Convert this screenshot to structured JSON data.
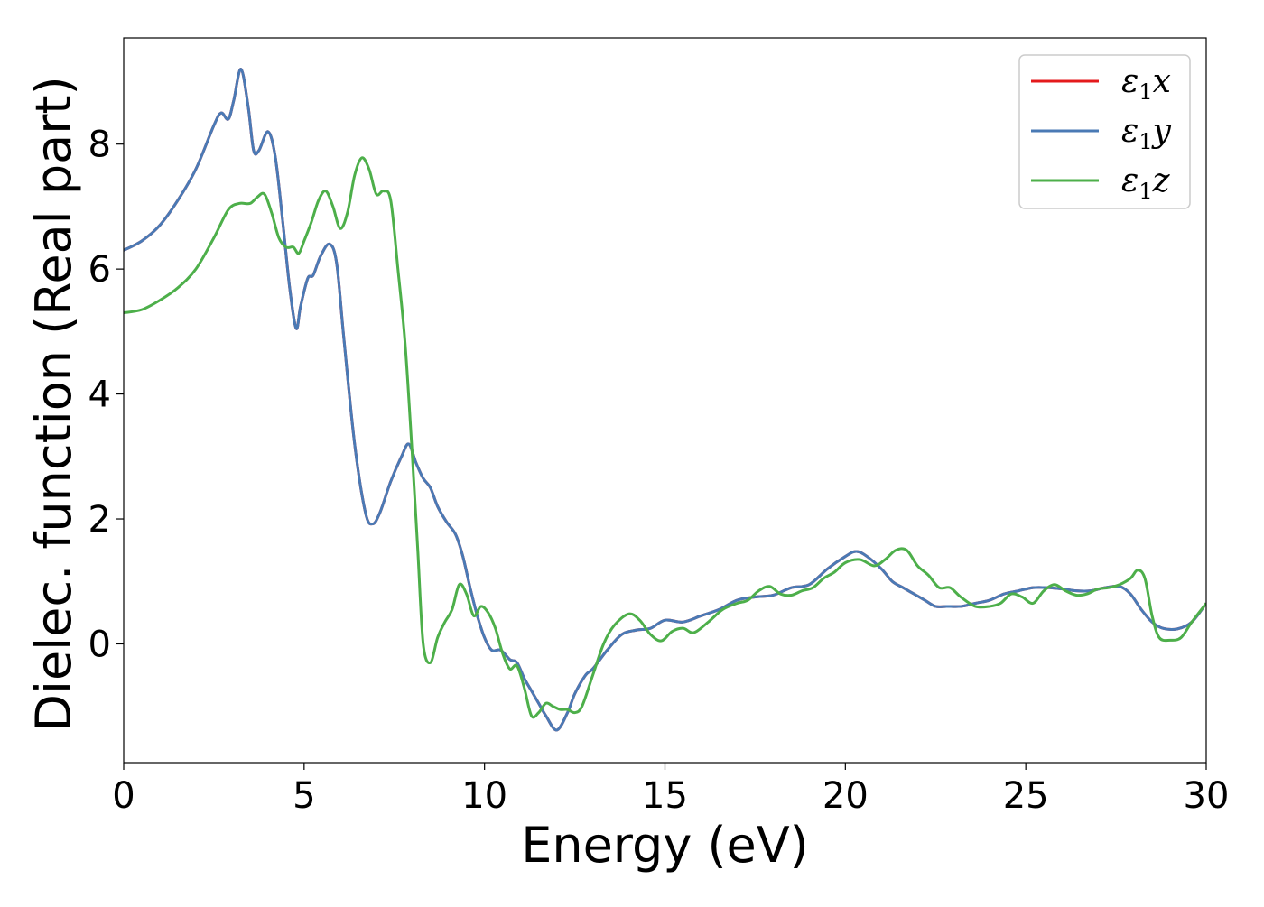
{
  "chart_data": {
    "type": "line",
    "title": "",
    "xlabel": "Energy (eV)",
    "ylabel": "Dielec. function (Real part)",
    "xlim": [
      0,
      30
    ],
    "ylim": [
      -1.9,
      9.7
    ],
    "xticks": [
      0,
      5,
      10,
      15,
      20,
      25,
      30
    ],
    "yticks": [
      0,
      2,
      4,
      6,
      8
    ],
    "grid": false,
    "legend_position": "top-right",
    "series": [
      {
        "name": "ε1x",
        "legend_base": "ε",
        "legend_sub": "1",
        "legend_tail": "x",
        "color": "#e41a1c",
        "x": [
          0,
          0.5,
          1,
          1.5,
          2,
          2.5,
          2.7,
          2.9,
          3.05,
          3.25,
          3.45,
          3.6,
          3.75,
          4.0,
          4.2,
          4.4,
          4.6,
          4.78,
          4.9,
          5.1,
          5.25,
          5.45,
          5.7,
          5.9,
          6.1,
          6.4,
          6.7,
          6.9,
          7.1,
          7.4,
          7.7,
          7.9,
          8.1,
          8.3,
          8.5,
          8.7,
          8.95,
          9.2,
          9.4,
          9.6,
          9.8,
          10.0,
          10.2,
          10.45,
          10.7,
          10.9,
          11.1,
          11.3,
          11.5,
          11.7,
          12.0,
          12.3,
          12.5,
          12.8,
          13.0,
          13.4,
          13.8,
          14.2,
          14.6,
          15.0,
          15.5,
          16.0,
          16.5,
          17.0,
          17.5,
          18.0,
          18.5,
          19.0,
          19.5,
          20.0,
          20.3,
          20.6,
          21.0,
          21.3,
          21.6,
          21.9,
          22.2,
          22.5,
          22.8,
          23.2,
          23.6,
          24.0,
          24.4,
          24.8,
          25.2,
          25.6,
          26.0,
          26.4,
          26.8,
          27.2,
          27.6,
          27.9,
          28.2,
          28.5,
          28.8,
          29.2,
          29.6,
          30.0
        ],
        "y": [
          6.3,
          6.45,
          6.7,
          7.1,
          7.6,
          8.3,
          8.5,
          8.4,
          8.7,
          9.2,
          8.6,
          7.9,
          7.9,
          8.2,
          7.8,
          6.8,
          5.7,
          5.05,
          5.4,
          5.85,
          5.9,
          6.2,
          6.4,
          6.1,
          4.9,
          3.2,
          2.1,
          1.92,
          2.1,
          2.6,
          3.0,
          3.2,
          2.9,
          2.65,
          2.5,
          2.2,
          1.95,
          1.75,
          1.4,
          0.9,
          0.45,
          0.1,
          -0.1,
          -0.1,
          -0.25,
          -0.3,
          -0.55,
          -0.75,
          -0.95,
          -1.15,
          -1.38,
          -1.1,
          -0.8,
          -0.5,
          -0.4,
          -0.1,
          0.15,
          0.22,
          0.25,
          0.38,
          0.35,
          0.45,
          0.55,
          0.7,
          0.75,
          0.78,
          0.9,
          0.95,
          1.2,
          1.4,
          1.48,
          1.4,
          1.2,
          1.0,
          0.9,
          0.8,
          0.7,
          0.6,
          0.6,
          0.6,
          0.65,
          0.7,
          0.8,
          0.85,
          0.9,
          0.9,
          0.88,
          0.85,
          0.85,
          0.9,
          0.92,
          0.8,
          0.55,
          0.35,
          0.25,
          0.24,
          0.35,
          0.65
        ]
      },
      {
        "name": "ε1y",
        "legend_base": "ε",
        "legend_sub": "1",
        "legend_tail": "y",
        "color": "#4a7ab5",
        "x": [
          0,
          0.5,
          1,
          1.5,
          2,
          2.5,
          2.7,
          2.9,
          3.05,
          3.25,
          3.45,
          3.6,
          3.75,
          4.0,
          4.2,
          4.4,
          4.6,
          4.78,
          4.9,
          5.1,
          5.25,
          5.45,
          5.7,
          5.9,
          6.1,
          6.4,
          6.7,
          6.9,
          7.1,
          7.4,
          7.7,
          7.9,
          8.1,
          8.3,
          8.5,
          8.7,
          8.95,
          9.2,
          9.4,
          9.6,
          9.8,
          10.0,
          10.2,
          10.45,
          10.7,
          10.9,
          11.1,
          11.3,
          11.5,
          11.7,
          12.0,
          12.3,
          12.5,
          12.8,
          13.0,
          13.4,
          13.8,
          14.2,
          14.6,
          15.0,
          15.5,
          16.0,
          16.5,
          17.0,
          17.5,
          18.0,
          18.5,
          19.0,
          19.5,
          20.0,
          20.3,
          20.6,
          21.0,
          21.3,
          21.6,
          21.9,
          22.2,
          22.5,
          22.8,
          23.2,
          23.6,
          24.0,
          24.4,
          24.8,
          25.2,
          25.6,
          26.0,
          26.4,
          26.8,
          27.2,
          27.6,
          27.9,
          28.2,
          28.5,
          28.8,
          29.2,
          29.6,
          30.0
        ],
        "y": [
          6.3,
          6.45,
          6.7,
          7.1,
          7.6,
          8.3,
          8.5,
          8.4,
          8.7,
          9.2,
          8.6,
          7.9,
          7.9,
          8.2,
          7.8,
          6.8,
          5.7,
          5.05,
          5.4,
          5.85,
          5.9,
          6.2,
          6.4,
          6.1,
          4.9,
          3.2,
          2.1,
          1.92,
          2.1,
          2.6,
          3.0,
          3.2,
          2.9,
          2.65,
          2.5,
          2.2,
          1.95,
          1.75,
          1.4,
          0.9,
          0.45,
          0.1,
          -0.1,
          -0.1,
          -0.25,
          -0.3,
          -0.55,
          -0.75,
          -0.95,
          -1.15,
          -1.38,
          -1.1,
          -0.8,
          -0.5,
          -0.4,
          -0.1,
          0.15,
          0.22,
          0.25,
          0.38,
          0.35,
          0.45,
          0.55,
          0.7,
          0.75,
          0.78,
          0.9,
          0.95,
          1.2,
          1.4,
          1.48,
          1.4,
          1.2,
          1.0,
          0.9,
          0.8,
          0.7,
          0.6,
          0.6,
          0.6,
          0.65,
          0.7,
          0.8,
          0.85,
          0.9,
          0.9,
          0.88,
          0.85,
          0.85,
          0.9,
          0.92,
          0.8,
          0.55,
          0.35,
          0.25,
          0.24,
          0.35,
          0.65
        ]
      },
      {
        "name": "ε1z",
        "legend_base": "ε",
        "legend_sub": "1",
        "legend_tail": "z",
        "color": "#4daf4a",
        "x": [
          0,
          0.5,
          1,
          1.5,
          2,
          2.5,
          2.9,
          3.2,
          3.5,
          3.7,
          3.9,
          4.1,
          4.3,
          4.5,
          4.7,
          4.85,
          5.0,
          5.2,
          5.4,
          5.6,
          5.8,
          6.0,
          6.2,
          6.4,
          6.6,
          6.8,
          7.0,
          7.2,
          7.4,
          7.6,
          7.8,
          8.0,
          8.15,
          8.3,
          8.5,
          8.7,
          8.9,
          9.1,
          9.3,
          9.5,
          9.7,
          9.9,
          10.1,
          10.3,
          10.5,
          10.7,
          10.9,
          11.1,
          11.3,
          11.5,
          11.7,
          11.9,
          12.1,
          12.3,
          12.5,
          12.7,
          13.0,
          13.3,
          13.6,
          14.0,
          14.3,
          14.6,
          14.9,
          15.2,
          15.5,
          15.8,
          16.2,
          16.6,
          17.0,
          17.3,
          17.6,
          17.9,
          18.2,
          18.5,
          18.8,
          19.1,
          19.4,
          19.7,
          20.0,
          20.4,
          20.8,
          21.1,
          21.4,
          21.7,
          22.0,
          22.3,
          22.6,
          22.9,
          23.2,
          23.6,
          24.0,
          24.3,
          24.6,
          24.9,
          25.2,
          25.5,
          25.8,
          26.1,
          26.4,
          26.7,
          27.0,
          27.3,
          27.6,
          27.9,
          28.1,
          28.3,
          28.5,
          28.7,
          29.0,
          29.3,
          29.6,
          30.0
        ],
        "y": [
          5.3,
          5.35,
          5.5,
          5.7,
          6.0,
          6.5,
          6.95,
          7.05,
          7.05,
          7.15,
          7.2,
          6.9,
          6.5,
          6.35,
          6.35,
          6.25,
          6.45,
          6.75,
          7.1,
          7.25,
          7.0,
          6.65,
          6.9,
          7.5,
          7.78,
          7.6,
          7.2,
          7.25,
          7.1,
          6.0,
          4.8,
          3.0,
          1.5,
          0.0,
          -0.3,
          0.1,
          0.35,
          0.55,
          0.95,
          0.8,
          0.45,
          0.6,
          0.5,
          0.25,
          -0.15,
          -0.4,
          -0.35,
          -0.7,
          -1.15,
          -1.1,
          -0.95,
          -1.0,
          -1.05,
          -1.05,
          -1.1,
          -1.0,
          -0.5,
          0.0,
          0.3,
          0.48,
          0.38,
          0.15,
          0.05,
          0.2,
          0.25,
          0.18,
          0.35,
          0.55,
          0.65,
          0.7,
          0.85,
          0.92,
          0.8,
          0.78,
          0.85,
          0.9,
          1.05,
          1.15,
          1.3,
          1.35,
          1.25,
          1.35,
          1.5,
          1.5,
          1.25,
          1.1,
          0.9,
          0.9,
          0.75,
          0.6,
          0.6,
          0.65,
          0.8,
          0.75,
          0.65,
          0.85,
          0.95,
          0.85,
          0.78,
          0.8,
          0.88,
          0.9,
          0.95,
          1.05,
          1.18,
          1.05,
          0.45,
          0.1,
          0.06,
          0.1,
          0.35,
          0.65
        ]
      }
    ]
  }
}
